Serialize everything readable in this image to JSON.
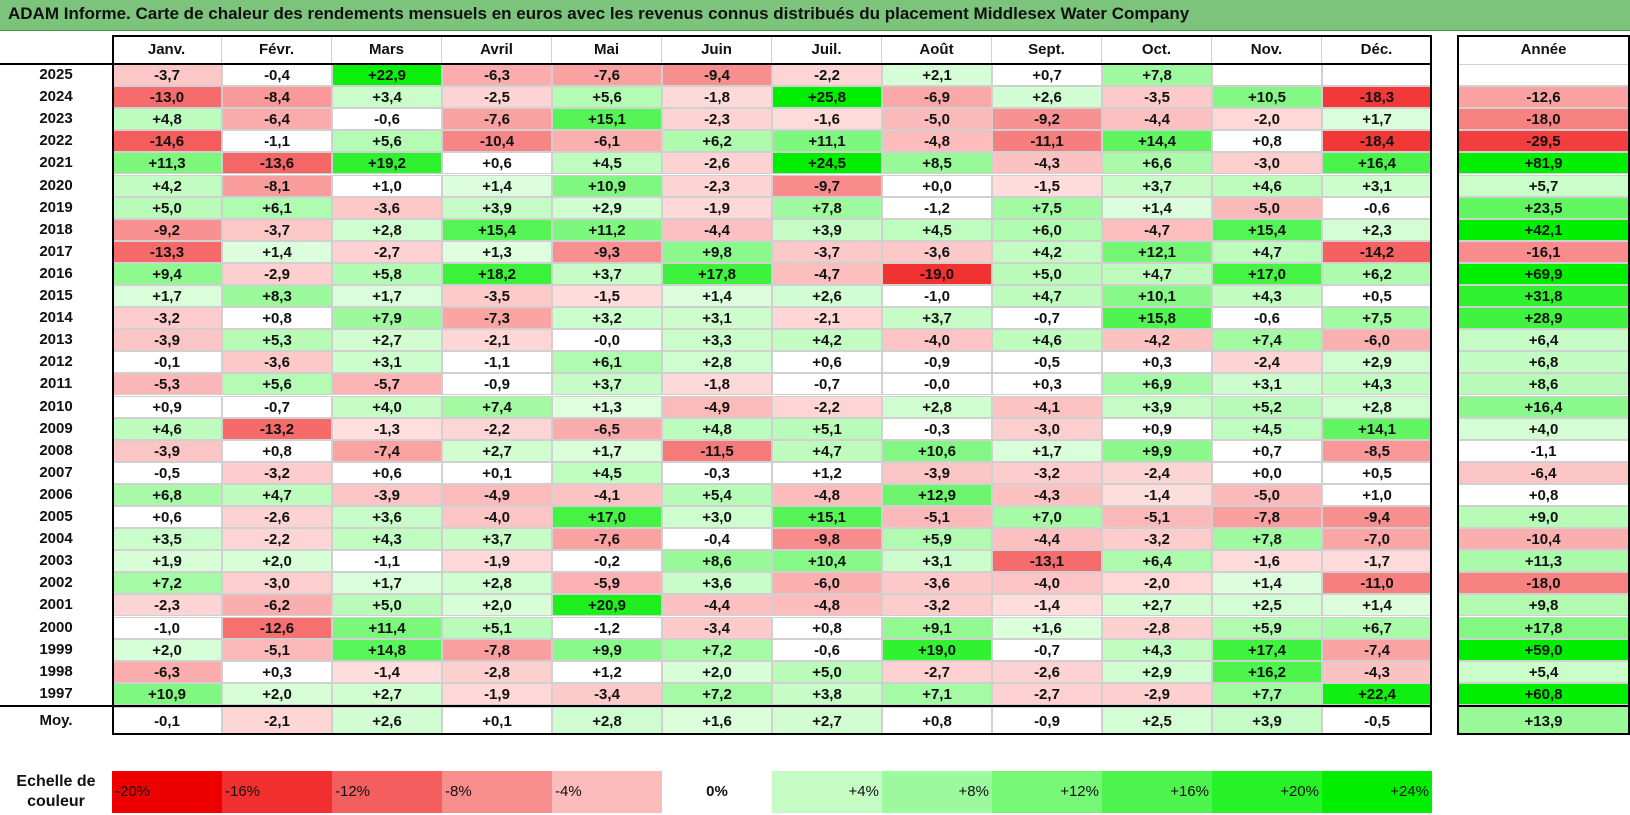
{
  "title": "ADAM Informe. Carte de chaleur des rendements mensuels en euros avec les revenus connus distribués du placement Middlesex Water Company",
  "colors": {
    "title_bg": "#7cc47c",
    "positive_max": "#00ee00",
    "negative_max": "#ee0000",
    "neutral": "#ffffff"
  },
  "chart_data": {
    "type": "heatmap",
    "title": "ADAM Informe. Carte de chaleur des rendements mensuels en euros avec les revenus connus distribués du placement Middlesex Water Company",
    "columns": [
      "Janv.",
      "Févr.",
      "Mars",
      "Avril",
      "Mai",
      "Juin",
      "Juil.",
      "Août",
      "Sept.",
      "Oct.",
      "Nov.",
      "Déc."
    ],
    "year_column_label": "Année",
    "rows": [
      {
        "year": "2025",
        "values": [
          "-3,7",
          "-0,4",
          "+22,9",
          "-6,3",
          "-7,6",
          "-9,4",
          "-2,2",
          "+2,1",
          "+0,7",
          "+7,8",
          "",
          ""
        ],
        "annual": ""
      },
      {
        "year": "2024",
        "values": [
          "-13,0",
          "-8,4",
          "+3,4",
          "-2,5",
          "+5,6",
          "-1,8",
          "+25,8",
          "-6,9",
          "+2,6",
          "-3,5",
          "+10,5",
          "-18,3"
        ],
        "annual": "-12,6"
      },
      {
        "year": "2023",
        "values": [
          "+4,8",
          "-6,4",
          "-0,6",
          "-7,6",
          "+15,1",
          "-2,3",
          "-1,6",
          "-5,0",
          "-9,2",
          "-4,4",
          "-2,0",
          "+1,7"
        ],
        "annual": "-18,0"
      },
      {
        "year": "2022",
        "values": [
          "-14,6",
          "-1,1",
          "+5,6",
          "-10,4",
          "-6,1",
          "+6,2",
          "+11,1",
          "-4,8",
          "-11,1",
          "+14,4",
          "+0,8",
          "-18,4"
        ],
        "annual": "-29,5"
      },
      {
        "year": "2021",
        "values": [
          "+11,3",
          "-13,6",
          "+19,2",
          "+0,6",
          "+4,5",
          "-2,6",
          "+24,5",
          "+8,5",
          "-4,3",
          "+6,6",
          "-3,0",
          "+16,4"
        ],
        "annual": "+81,9"
      },
      {
        "year": "2020",
        "values": [
          "+4,2",
          "-8,1",
          "+1,0",
          "+1,4",
          "+10,9",
          "-2,3",
          "-9,7",
          "+0,0",
          "-1,5",
          "+3,7",
          "+4,6",
          "+3,1"
        ],
        "annual": "+5,7"
      },
      {
        "year": "2019",
        "values": [
          "+5,0",
          "+6,1",
          "-3,6",
          "+3,9",
          "+2,9",
          "-1,9",
          "+7,8",
          "-1,2",
          "+7,5",
          "+1,4",
          "-5,0",
          "-0,6"
        ],
        "annual": "+23,5"
      },
      {
        "year": "2018",
        "values": [
          "-9,2",
          "-3,7",
          "+2,8",
          "+15,4",
          "+11,2",
          "-4,4",
          "+3,9",
          "+4,5",
          "+6,0",
          "-4,7",
          "+15,4",
          "+2,3"
        ],
        "annual": "+42,1"
      },
      {
        "year": "2017",
        "values": [
          "-13,3",
          "+1,4",
          "-2,7",
          "+1,3",
          "-9,3",
          "+9,8",
          "-3,7",
          "-3,6",
          "+4,2",
          "+12,1",
          "+4,7",
          "-14,2"
        ],
        "annual": "-16,1"
      },
      {
        "year": "2016",
        "values": [
          "+9,4",
          "-2,9",
          "+5,8",
          "+18,2",
          "+3,7",
          "+17,8",
          "-4,7",
          "-19,0",
          "+5,0",
          "+4,7",
          "+17,0",
          "+6,2"
        ],
        "annual": "+69,9"
      },
      {
        "year": "2015",
        "values": [
          "+1,7",
          "+8,3",
          "+1,7",
          "-3,5",
          "-1,5",
          "+1,4",
          "+2,6",
          "-1,0",
          "+4,7",
          "+10,1",
          "+4,3",
          "+0,5"
        ],
        "annual": "+31,8"
      },
      {
        "year": "2014",
        "values": [
          "-3,2",
          "+0,8",
          "+7,9",
          "-7,3",
          "+3,2",
          "+3,1",
          "-2,1",
          "+3,7",
          "-0,7",
          "+15,8",
          "-0,6",
          "+7,5"
        ],
        "annual": "+28,9"
      },
      {
        "year": "2013",
        "values": [
          "-3,9",
          "+5,3",
          "+2,7",
          "-2,1",
          "-0,0",
          "+3,3",
          "+4,2",
          "-4,0",
          "+4,6",
          "-4,2",
          "+7,4",
          "-6,0"
        ],
        "annual": "+6,4"
      },
      {
        "year": "2012",
        "values": [
          "-0,1",
          "-3,6",
          "+3,1",
          "-1,1",
          "+6,1",
          "+2,8",
          "+0,6",
          "-0,9",
          "-0,5",
          "+0,3",
          "-2,4",
          "+2,9"
        ],
        "annual": "+6,8"
      },
      {
        "year": "2011",
        "values": [
          "-5,3",
          "+5,6",
          "-5,7",
          "-0,9",
          "+3,7",
          "-1,8",
          "-0,7",
          "-0,0",
          "+0,3",
          "+6,9",
          "+3,1",
          "+4,3"
        ],
        "annual": "+8,6"
      },
      {
        "year": "2010",
        "values": [
          "+0,9",
          "-0,7",
          "+4,0",
          "+7,4",
          "+1,3",
          "-4,9",
          "-2,2",
          "+2,8",
          "-4,1",
          "+3,9",
          "+5,2",
          "+2,8"
        ],
        "annual": "+16,4"
      },
      {
        "year": "2009",
        "values": [
          "+4,6",
          "-13,2",
          "-1,3",
          "-2,2",
          "-6,5",
          "+4,8",
          "+5,1",
          "-0,3",
          "-3,0",
          "+0,9",
          "+4,5",
          "+14,1"
        ],
        "annual": "+4,0"
      },
      {
        "year": "2008",
        "values": [
          "-3,9",
          "+0,8",
          "-7,4",
          "+2,7",
          "+1,7",
          "-11,5",
          "+4,7",
          "+10,6",
          "+1,7",
          "+9,9",
          "+0,7",
          "-8,5"
        ],
        "annual": "-1,1"
      },
      {
        "year": "2007",
        "values": [
          "-0,5",
          "-3,2",
          "+0,6",
          "+0,1",
          "+4,5",
          "-0,3",
          "+1,2",
          "-3,9",
          "-3,2",
          "-2,4",
          "+0,0",
          "+0,5"
        ],
        "annual": "-6,4"
      },
      {
        "year": "2006",
        "values": [
          "+6,8",
          "+4,7",
          "-3,9",
          "-4,9",
          "-4,1",
          "+5,4",
          "-4,8",
          "+12,9",
          "-4,3",
          "-1,4",
          "-5,0",
          "+1,0"
        ],
        "annual": "+0,8"
      },
      {
        "year": "2005",
        "values": [
          "+0,6",
          "-2,6",
          "+3,6",
          "-4,0",
          "+17,0",
          "+3,0",
          "+15,1",
          "-5,1",
          "+7,0",
          "-5,1",
          "-7,8",
          "-9,4"
        ],
        "annual": "+9,0"
      },
      {
        "year": "2004",
        "values": [
          "+3,5",
          "-2,2",
          "+4,3",
          "+3,7",
          "-7,6",
          "-0,4",
          "-9,8",
          "+5,9",
          "-4,4",
          "-3,2",
          "+7,8",
          "-7,0"
        ],
        "annual": "-10,4"
      },
      {
        "year": "2003",
        "values": [
          "+1,9",
          "+2,0",
          "-1,1",
          "-1,9",
          "-0,2",
          "+8,6",
          "+10,4",
          "+3,1",
          "-13,1",
          "+6,4",
          "-1,6",
          "-1,7"
        ],
        "annual": "+11,3"
      },
      {
        "year": "2002",
        "values": [
          "+7,2",
          "-3,0",
          "+1,7",
          "+2,8",
          "-5,9",
          "+3,6",
          "-6,0",
          "-3,6",
          "-4,0",
          "-2,0",
          "+1,4",
          "-11,0"
        ],
        "annual": "-18,0"
      },
      {
        "year": "2001",
        "values": [
          "-2,3",
          "-6,2",
          "+5,0",
          "+2,0",
          "+20,9",
          "-4,4",
          "-4,8",
          "-3,2",
          "-1,4",
          "+2,7",
          "+2,5",
          "+1,4"
        ],
        "annual": "+9,8"
      },
      {
        "year": "2000",
        "values": [
          "-1,0",
          "-12,6",
          "+11,4",
          "+5,1",
          "-1,2",
          "-3,4",
          "+0,8",
          "+9,1",
          "+1,6",
          "-2,8",
          "+5,9",
          "+6,7"
        ],
        "annual": "+17,8"
      },
      {
        "year": "1999",
        "values": [
          "+2,0",
          "-5,1",
          "+14,8",
          "-7,8",
          "+9,9",
          "+7,2",
          "-0,6",
          "+19,0",
          "-0,7",
          "+4,3",
          "+17,4",
          "-7,4"
        ],
        "annual": "+59,0"
      },
      {
        "year": "1998",
        "values": [
          "-6,3",
          "+0,3",
          "-1,4",
          "-2,8",
          "+1,2",
          "+2,0",
          "+5,0",
          "-2,7",
          "-2,6",
          "+2,9",
          "+16,2",
          "-4,3"
        ],
        "annual": "+5,4"
      },
      {
        "year": "1997",
        "values": [
          "+10,9",
          "+2,0",
          "+2,7",
          "-1,9",
          "-3,4",
          "+7,2",
          "+3,8",
          "+7,1",
          "-2,7",
          "-2,9",
          "+7,7",
          "+22,4"
        ],
        "annual": "+60,8"
      }
    ],
    "average": {
      "label": "Moy.",
      "values": [
        "-0,1",
        "-2,1",
        "+2,6",
        "+0,1",
        "+2,8",
        "+1,6",
        "+2,7",
        "+0,8",
        "-0,9",
        "+2,5",
        "+3,9",
        "-0,5"
      ],
      "annual": "+13,9"
    },
    "color_scale": {
      "label": "Echelle de couleur",
      "stops": [
        "-20%",
        "-16%",
        "-12%",
        "-8%",
        "-4%",
        "0%",
        "+4%",
        "+8%",
        "+12%",
        "+16%",
        "+20%",
        "+24%"
      ]
    }
  }
}
